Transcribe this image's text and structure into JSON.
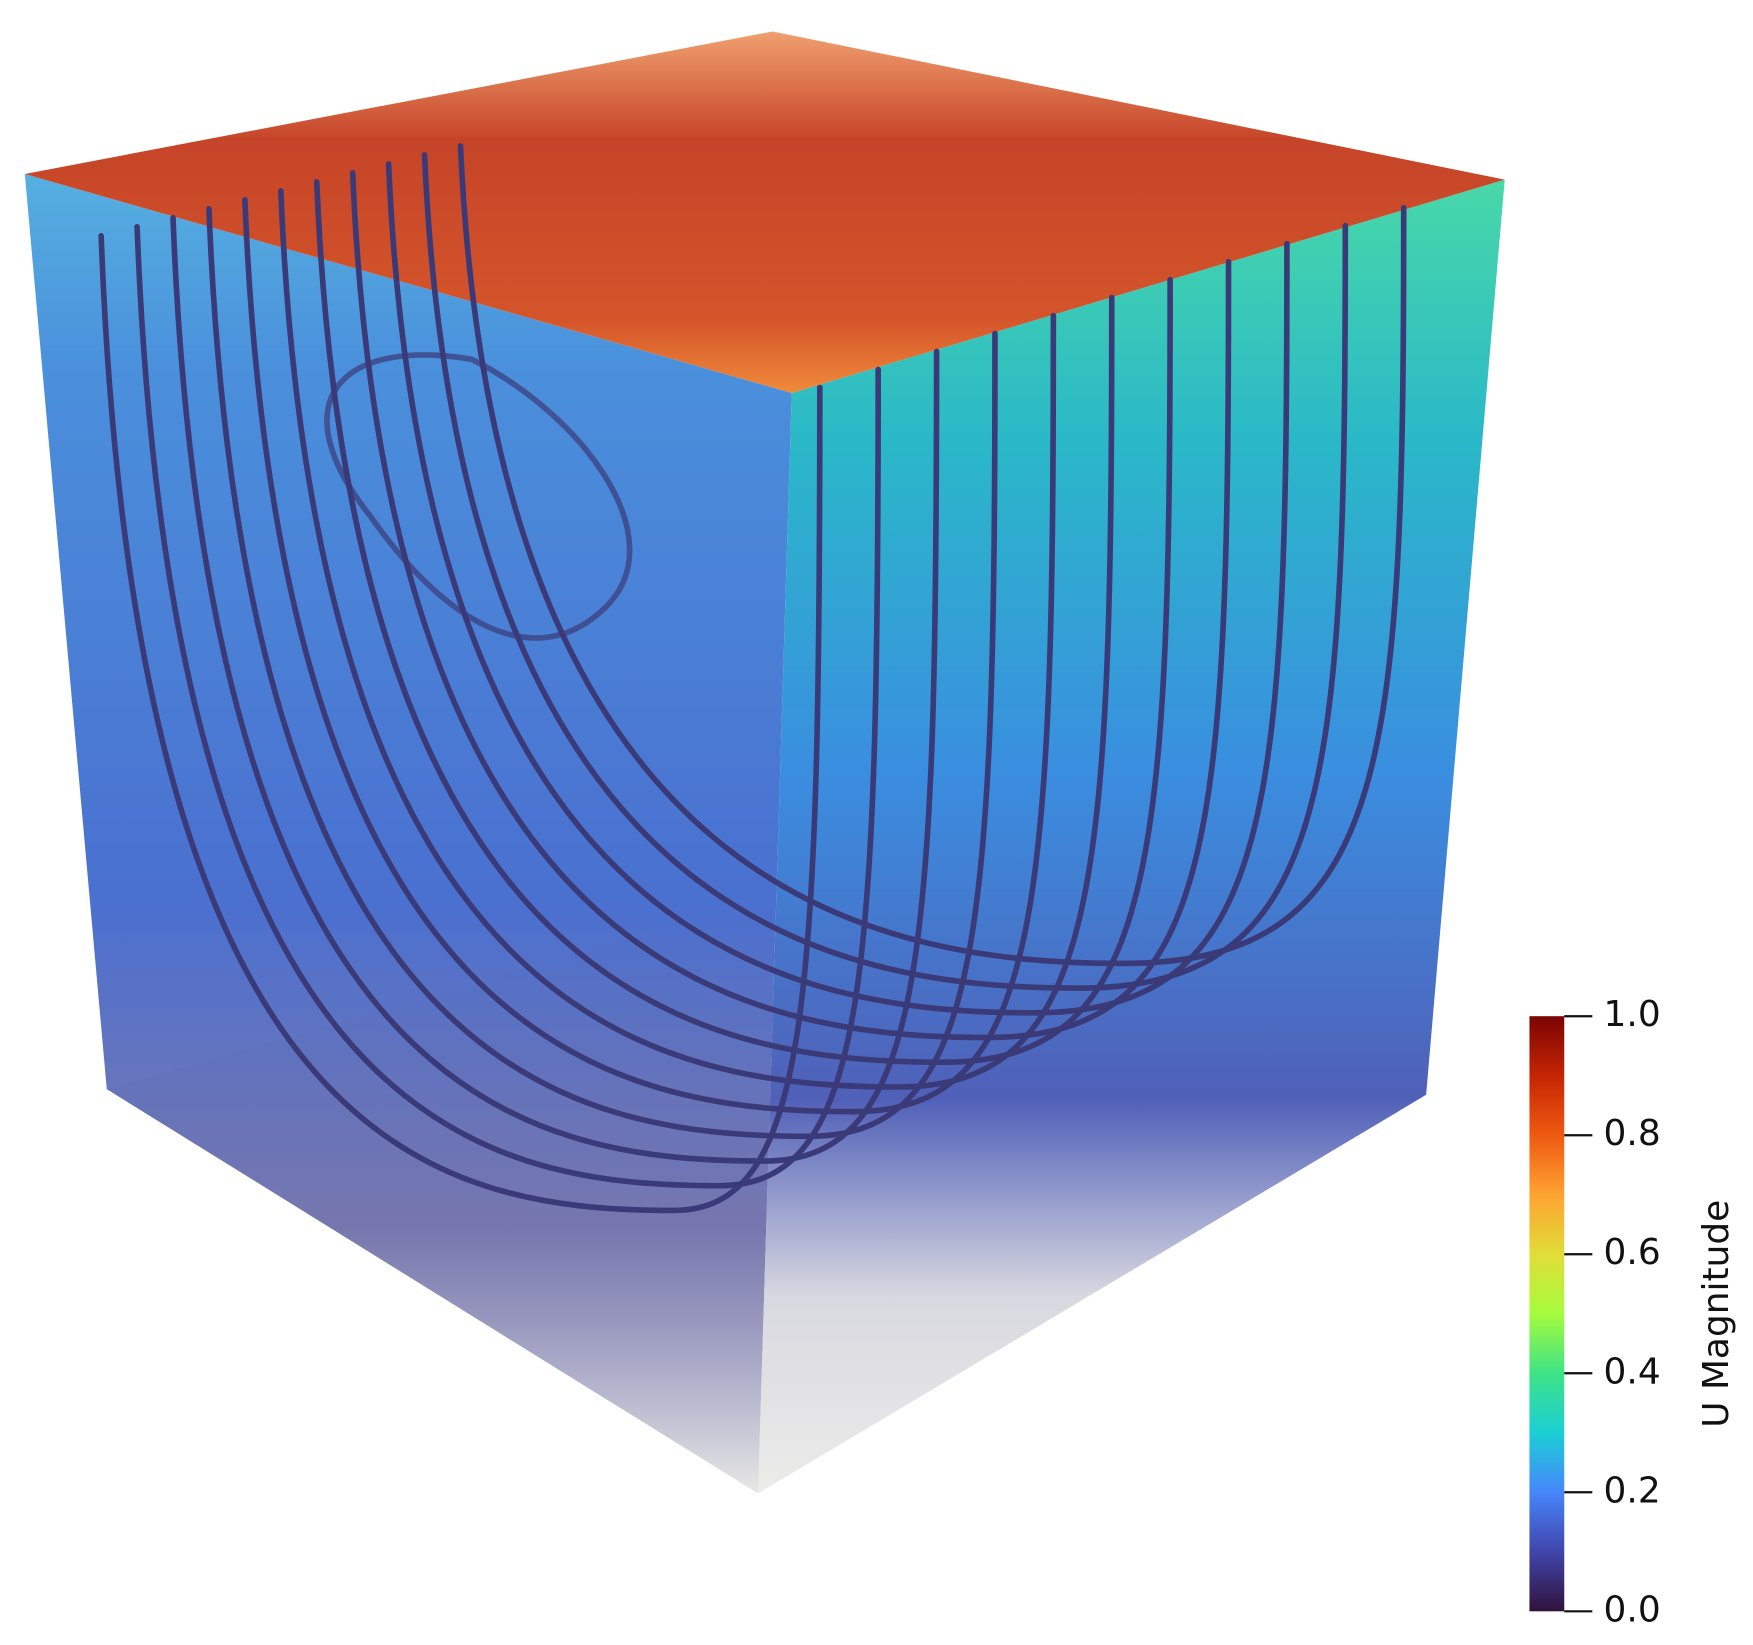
{
  "colorbar": {
    "title": "U Magnitude",
    "range": [
      0,
      1
    ],
    "ticks": [
      {
        "value": 0,
        "label": "0.0"
      },
      {
        "value": 0.2,
        "label": "0.2"
      },
      {
        "value": 0.4,
        "label": "0.4"
      },
      {
        "value": 0.6,
        "label": "0.6"
      },
      {
        "value": 0.8,
        "label": "0.8"
      },
      {
        "value": 1,
        "label": "1.0"
      }
    ]
  }
}
